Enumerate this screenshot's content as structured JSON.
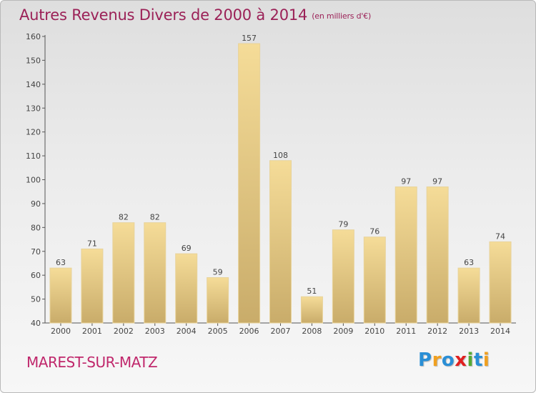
{
  "title": "Autres Revenus Divers de 2000 à 2014",
  "title_unit": "(en milliers d'€)",
  "place": "MAREST-SUR-MATZ",
  "logo": {
    "text": "Proxiti",
    "colors": [
      "#2a8fd6",
      "#f0a020",
      "#2a8fd6",
      "#e02020",
      "#55aa33",
      "#2a8fd6",
      "#f0a020"
    ]
  },
  "colors": {
    "title": "#9b2157",
    "place": "#c0286c",
    "bar_top": "#f5dc98",
    "bar_bottom": "#c9ac6a"
  },
  "chart_data": {
    "type": "bar",
    "categories": [
      "2000",
      "2001",
      "2002",
      "2003",
      "2004",
      "2005",
      "2006",
      "2007",
      "2008",
      "2009",
      "2010",
      "2011",
      "2012",
      "2013",
      "2014"
    ],
    "values": [
      63,
      71,
      82,
      82,
      69,
      59,
      157,
      108,
      51,
      79,
      76,
      97,
      97,
      63,
      74
    ],
    "ylim": [
      40,
      160
    ],
    "yticks": [
      40,
      50,
      60,
      70,
      80,
      90,
      100,
      110,
      120,
      130,
      140,
      150,
      160
    ],
    "grid": false,
    "data_labels": true
  }
}
